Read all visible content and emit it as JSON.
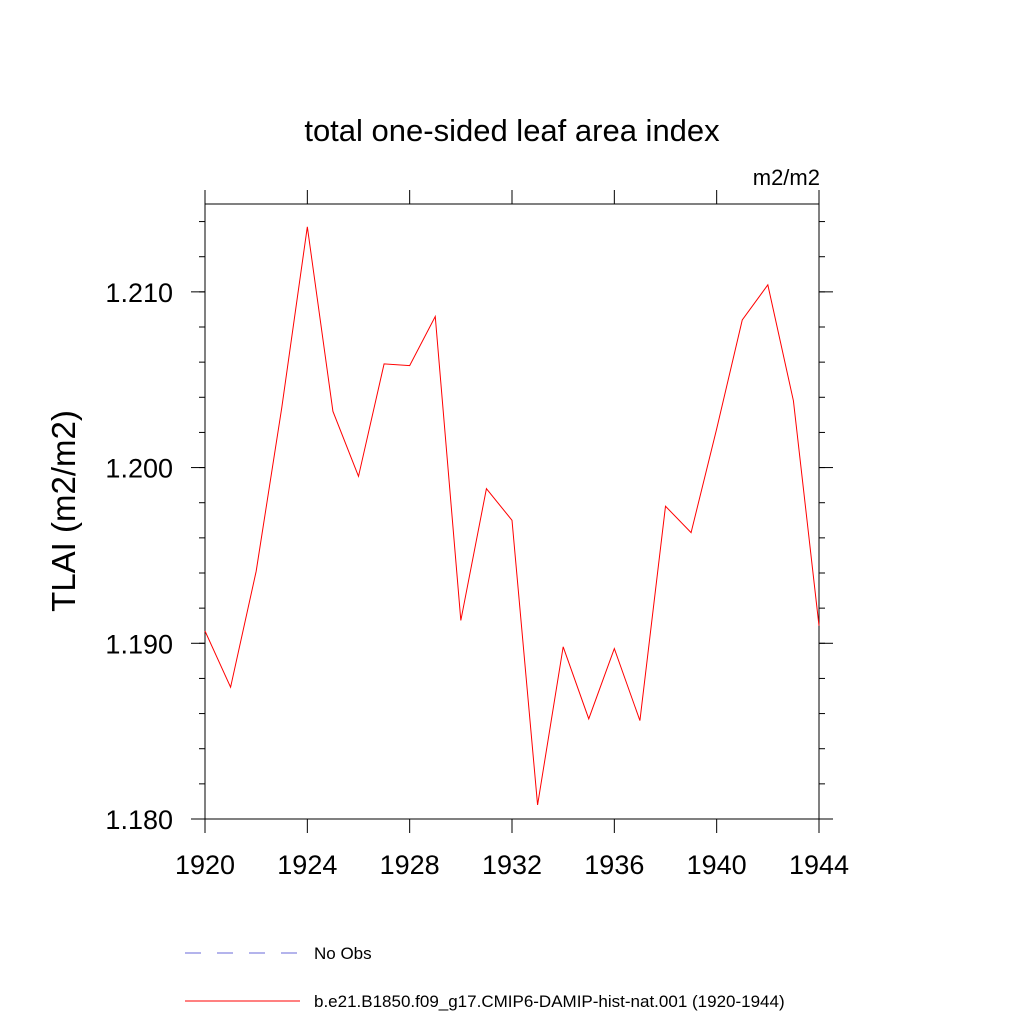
{
  "chart_data": {
    "type": "line",
    "title": "total one-sided leaf area index",
    "units_label": "m2/m2",
    "ylabel": "TLAI  (m2/m2)",
    "xlabel": "",
    "xlim": [
      1920,
      1944
    ],
    "ylim": [
      1.18,
      1.215
    ],
    "x_ticks": [
      1920,
      1924,
      1928,
      1932,
      1936,
      1940,
      1944
    ],
    "x_tick_labels": [
      "1920",
      "1924",
      "1928",
      "1932",
      "1936",
      "1940",
      "1944"
    ],
    "y_ticks": [
      1.18,
      1.19,
      1.2,
      1.21
    ],
    "y_tick_labels": [
      "1.180",
      "1.190",
      "1.200",
      "1.210"
    ],
    "grid": false,
    "legend_position": "bottom",
    "series": [
      {
        "name": "b.e21.B1850.f09_g17.CMIP6-DAMIP-hist-nat.001 (1920-1944)",
        "color": "#ff0000",
        "dash": "solid",
        "x": [
          1920,
          1921,
          1922,
          1923,
          1924,
          1925,
          1926,
          1927,
          1928,
          1929,
          1930,
          1931,
          1932,
          1933,
          1934,
          1935,
          1936,
          1937,
          1938,
          1939,
          1940,
          1941,
          1942,
          1943,
          1944
        ],
        "values": [
          1.1907,
          1.1875,
          1.1941,
          1.2034,
          1.2137,
          1.2032,
          1.1995,
          1.2059,
          1.2058,
          1.2086,
          1.1913,
          1.1988,
          1.197,
          1.1808,
          1.1898,
          1.1857,
          1.1897,
          1.1856,
          1.1978,
          1.1963,
          1.2022,
          1.2084,
          1.2104,
          1.2038,
          1.191
        ]
      }
    ],
    "legend": [
      {
        "label": "No Obs",
        "color": "#6a6ad8",
        "dash": "dashed"
      },
      {
        "label": "b.e21.B1850.f09_g17.CMIP6-DAMIP-hist-nat.001 (1920-1944)",
        "color": "#ff0000",
        "dash": "solid"
      }
    ]
  }
}
